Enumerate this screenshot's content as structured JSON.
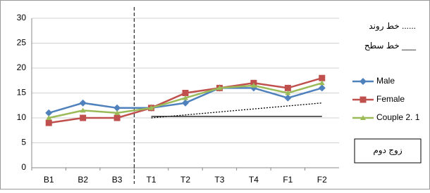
{
  "chart_data": {
    "type": "line",
    "categories": [
      "B1",
      "B2",
      "B3",
      "T1",
      "T2",
      "T3",
      "T4",
      "F1",
      "F2"
    ],
    "series": [
      {
        "name": "Male",
        "color": "#4f81bd",
        "marker": "diamond",
        "values": [
          11,
          13,
          12,
          12,
          13,
          16,
          16,
          14,
          16
        ]
      },
      {
        "name": "Female",
        "color": "#c0504d",
        "marker": "square",
        "values": [
          9,
          10,
          10,
          12,
          15,
          16,
          17,
          16,
          18
        ]
      },
      {
        "name": "Couple 2. 1",
        "color": "#9bbb59",
        "marker": "triangle",
        "values": [
          10,
          11.5,
          11,
          12,
          14,
          16,
          16.5,
          15,
          17
        ]
      }
    ],
    "ylim": [
      0,
      30
    ],
    "yticks": [
      0,
      5,
      10,
      15,
      20,
      25,
      30
    ],
    "grid": true,
    "trend": {
      "label": "خط روند ......",
      "values": [
        10,
        13
      ]
    },
    "level": {
      "label": "خط سطح ___",
      "value": 10.3
    },
    "box_label": "زوج دوم"
  }
}
